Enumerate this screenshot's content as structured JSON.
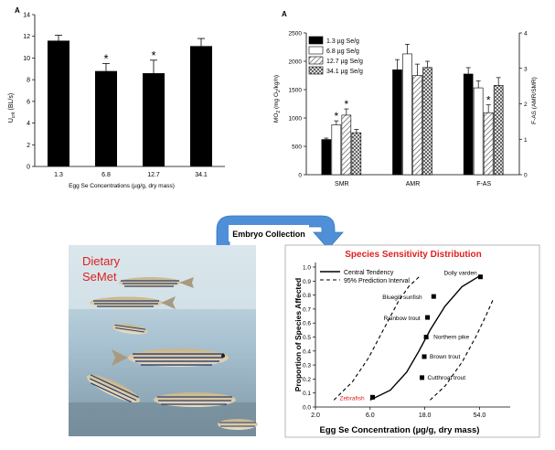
{
  "chart_data": [
    {
      "panel_label": "A",
      "type": "bar",
      "ylabel_main": "U",
      "ylabel_sub": "crit",
      "ylabel_unit": " (BL/s)",
      "xlabel": "Egg Se Concentrations (µg/g, dry mass)",
      "categories": [
        "1.3",
        "6.8",
        "12.7",
        "34.1"
      ],
      "values": [
        11.6,
        8.8,
        8.6,
        11.1
      ],
      "errors": [
        0.5,
        0.7,
        1.2,
        0.7
      ],
      "significant": [
        false,
        true,
        true,
        false
      ],
      "significance_mark": "*",
      "ylim": [
        0,
        14
      ],
      "yticks": [
        0,
        2,
        4,
        6,
        8,
        10,
        12,
        14
      ],
      "bar_color": "#000000"
    },
    {
      "panel_label": "A",
      "type": "bar",
      "ylabel_left_main": "MO",
      "ylabel_left_sub": "2",
      "ylabel_left_unit": " (mg O",
      "ylabel_left_sub2": "2",
      "ylabel_left_unit2": "/kg/h)",
      "ylabel_right": "F-AS (AMR/SMR)",
      "categories": [
        "SMR",
        "AMR",
        "F-AS"
      ],
      "legend": [
        "1.3 µg Se/g",
        "6.8 µg Se/g",
        "12.7 µg Se/g",
        "34.1 µg Se/g"
      ],
      "series": [
        {
          "name": "1.3 µg Se/g",
          "pattern": "solid-black",
          "values": [
            620,
            1850,
            2.84
          ],
          "errors": [
            25,
            180,
            0.18
          ]
        },
        {
          "name": "6.8 µg Se/g",
          "pattern": "white",
          "values": [
            880,
            2130,
            2.45
          ],
          "errors": [
            70,
            170,
            0.2
          ]
        },
        {
          "name": "12.7 µg Se/g",
          "pattern": "diagonal-hatch",
          "values": [
            1050,
            1750,
            1.75
          ],
          "errors": [
            110,
            200,
            0.22
          ]
        },
        {
          "name": "34.1 µg Se/g",
          "pattern": "cross-hatch",
          "values": [
            740,
            1890,
            2.52
          ],
          "errors": [
            60,
            110,
            0.22
          ]
        }
      ],
      "significant": [
        [
          1,
          0
        ],
        [
          2,
          0
        ],
        [
          2,
          2
        ]
      ],
      "significance_mark": "*",
      "ylim_left": [
        0,
        2500
      ],
      "yticks_left": [
        0,
        500,
        1000,
        1500,
        2000,
        2500
      ],
      "ylim_right": [
        0,
        4
      ],
      "yticks_right": [
        0,
        1,
        2,
        3,
        4
      ],
      "right_axis_category": "F-AS"
    },
    {
      "type": "scatter",
      "title": "Species Sensitivity Distribution",
      "xlabel": "Egg Se Concentration (µg/g, dry mass)",
      "ylabel": "Proportion of Species Affected",
      "x_scale": "log",
      "xlim": [
        2.0,
        100
      ],
      "xticks": [
        "2.0",
        "6.0",
        "18.0",
        "54.0"
      ],
      "xtick_values": [
        2.0,
        6.0,
        18.0,
        54.0
      ],
      "ylim": [
        0,
        1.0
      ],
      "yticks": [
        "0.0",
        "0.1",
        "0.2",
        "0.3",
        "0.4",
        "0.5",
        "0.6",
        "0.7",
        "0.8",
        "0.9",
        "1.0"
      ],
      "legend": [
        "Central Tendency",
        "95% Prediction Interval"
      ],
      "points": [
        {
          "species": "Zebrafish",
          "x": 6.3,
          "y": 0.07,
          "label_color": "#e02020"
        },
        {
          "species": "Cutthroat trout",
          "x": 17.0,
          "y": 0.21,
          "label_color": "#000000"
        },
        {
          "species": "Brown trout",
          "x": 17.8,
          "y": 0.36,
          "label_color": "#000000"
        },
        {
          "species": "Northern pike",
          "x": 18.5,
          "y": 0.5,
          "label_color": "#000000"
        },
        {
          "species": "Rainbow trout",
          "x": 19.0,
          "y": 0.64,
          "label_color": "#000000"
        },
        {
          "species": "Bluegill sunfish",
          "x": 21.5,
          "y": 0.79,
          "label_color": "#000000"
        },
        {
          "species": "Dolly varden",
          "x": 55.0,
          "y": 0.93,
          "label_color": "#000000"
        }
      ],
      "central_curve": [
        [
          6.0,
          0.05
        ],
        [
          9.0,
          0.12
        ],
        [
          12.5,
          0.25
        ],
        [
          16.0,
          0.4
        ],
        [
          20.0,
          0.55
        ],
        [
          27.0,
          0.72
        ],
        [
          38.0,
          0.86
        ],
        [
          55.0,
          0.94
        ]
      ],
      "pi_left_curve": [
        [
          2.9,
          0.05
        ],
        [
          4.2,
          0.18
        ],
        [
          5.8,
          0.35
        ],
        [
          7.8,
          0.55
        ],
        [
          10.5,
          0.75
        ],
        [
          13.0,
          0.86
        ],
        [
          16.5,
          0.94
        ]
      ],
      "pi_right_curve": [
        [
          20.0,
          0.05
        ],
        [
          27.0,
          0.15
        ],
        [
          38.0,
          0.32
        ],
        [
          50.0,
          0.5
        ],
        [
          62.0,
          0.66
        ],
        [
          72.0,
          0.78
        ]
      ],
      "title_color": "#e02020"
    }
  ],
  "embryo_collection": "Embryo Collection",
  "photo_label_line1": "Dietary",
  "photo_label_line2": "SeMet",
  "colors": {
    "arrow": "#4f8fd8",
    "photo_label": "#e02020",
    "title": "#e02020"
  }
}
